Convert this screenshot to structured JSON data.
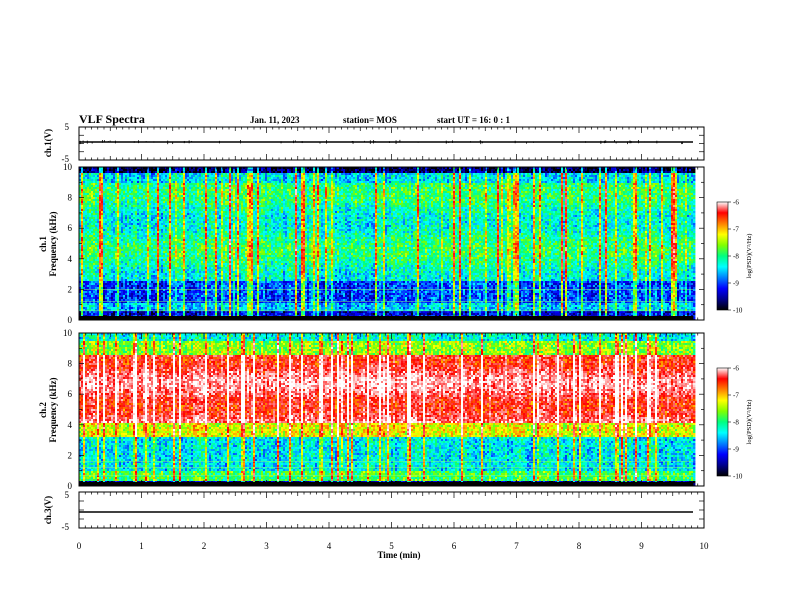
{
  "header": {
    "title": "VLF Spectra",
    "date": "Jan. 11, 2023",
    "station": "station= MOS",
    "start": "start  UT =  16: 0  : 1"
  },
  "chart_data": [
    {
      "type": "line",
      "panel": "ch1-voltage",
      "ylabel": "ch.1(V)",
      "xlim": [
        0,
        10
      ],
      "ylim": [
        -5,
        5
      ],
      "ytick_labels": [
        "5",
        "-5"
      ],
      "series": [
        {
          "x_range": [
            0,
            9.83
          ],
          "y_level": 0.1
        }
      ]
    },
    {
      "type": "heatmap",
      "panel": "ch1-spectrogram",
      "ylabel_line1": "ch.1",
      "ylabel_line2": "Frequency (kHz)",
      "xlim": [
        0,
        10
      ],
      "ylim": [
        0,
        10
      ],
      "ytick_labels": [
        "10",
        "8",
        "6",
        "4",
        "2",
        "0"
      ],
      "x_extent_min": 9.83,
      "dominant_band_khz": [
        2.5,
        9.5
      ],
      "notes_profile": "broadband vertical impulses (sferics), quieter blue background"
    },
    {
      "type": "heatmap",
      "panel": "ch2-spectrogram",
      "ylabel_line1": "ch.2",
      "ylabel_line2": "Frequency (kHz)",
      "xlim": [
        0,
        10
      ],
      "ylim": [
        0,
        10
      ],
      "ytick_labels": [
        "10",
        "8",
        "6",
        "4",
        "2",
        "0"
      ],
      "x_extent_min": 9.83,
      "dominant_band_khz": [
        3.5,
        8.5
      ]
    },
    {
      "type": "line",
      "panel": "ch3-voltage",
      "ylabel": "ch.3(V)",
      "xlim": [
        0,
        10
      ],
      "ylim": [
        -5,
        5
      ],
      "ytick_labels": [
        "5",
        "-5"
      ],
      "series": [
        {
          "x_range": [
            0,
            9.83
          ],
          "y_level": -1.0
        }
      ]
    }
  ],
  "x_axis": {
    "label": "Time (min)",
    "tick_labels": [
      "0",
      "1",
      "2",
      "3",
      "4",
      "5",
      "6",
      "7",
      "8",
      "9",
      "10"
    ]
  },
  "colorbars": [
    {
      "label": "log(PSD)(V²/Hz)",
      "range": [
        -10,
        -6
      ],
      "tick_labels": [
        "-6",
        "-7",
        "-8",
        "-9",
        "-10"
      ]
    },
    {
      "label": "log(PSD)(V²/Hz)",
      "range": [
        -10,
        -6
      ],
      "tick_labels": [
        "-6",
        "-7",
        "-8",
        "-9",
        "-10"
      ]
    }
  ],
  "colormap": [
    "#000000",
    "#00008b",
    "#0000ff",
    "#0080ff",
    "#00ffff",
    "#00ff80",
    "#80ff00",
    "#ffff00",
    "#ff8000",
    "#ff0000",
    "#ff8080",
    "#ffffff"
  ]
}
